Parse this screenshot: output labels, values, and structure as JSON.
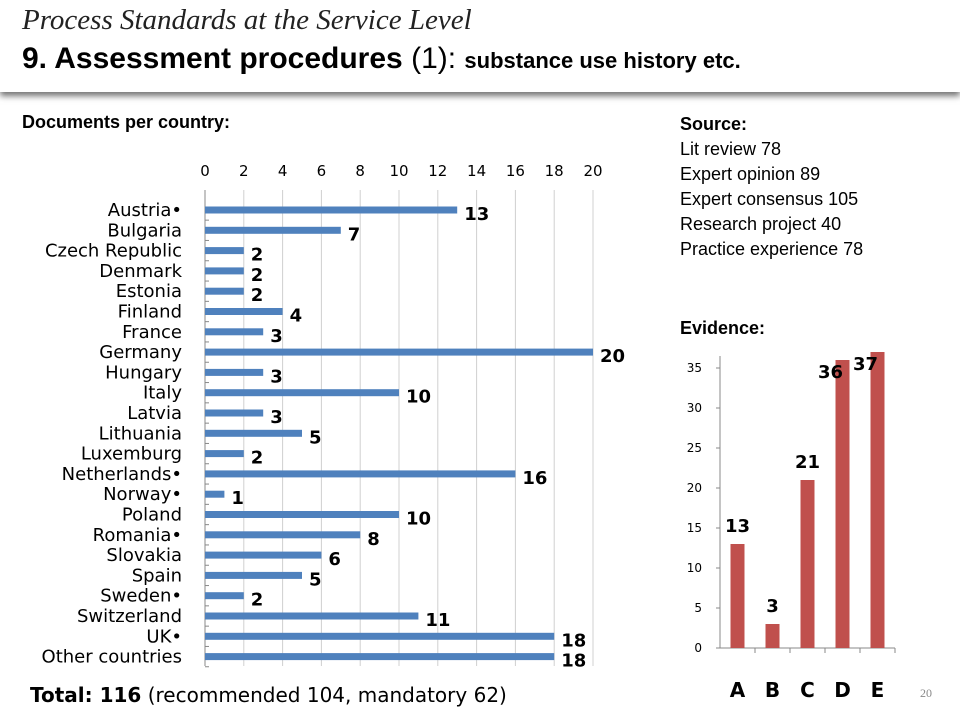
{
  "header": {
    "title": "Process Standards at the Service Level",
    "subtitle_main": "9. Assessment procedures",
    "subtitle_num": "(1):",
    "subtitle_small": "substance use history etc."
  },
  "docs_label": "Documents per country:",
  "source": {
    "heading": "Source:",
    "items": [
      "Lit review 78",
      "Expert opinion 89",
      "Expert consensus 105",
      "Research project 40",
      "Practice experience 78"
    ]
  },
  "evidence_label": "Evidence:",
  "total": {
    "bold": "Total: 116",
    "rest": "(recommended 104, mandatory 62)"
  },
  "page_number": "20",
  "colors": {
    "country_bar": "#4f81bd",
    "evidence_bar": "#c0504d"
  },
  "chart_data": [
    {
      "type": "bar",
      "orientation": "horizontal",
      "categories": [
        "Austria•",
        "Bulgaria",
        "Czech Republic",
        "Denmark",
        "Estonia",
        "Finland",
        "France",
        "Germany",
        "Hungary",
        "Italy",
        "Latvia",
        "Lithuania",
        "Luxemburg",
        "Netherlands•",
        "Norway•",
        "Poland",
        "Romania•",
        "Slovakia",
        "Spain",
        "Sweden•",
        "Switzerland",
        "UK•",
        "Other countries"
      ],
      "values": [
        13,
        7,
        2,
        2,
        2,
        4,
        3,
        20,
        3,
        10,
        3,
        5,
        2,
        16,
        1,
        10,
        8,
        6,
        5,
        2,
        11,
        18,
        18
      ],
      "xlim": [
        0,
        20
      ],
      "xticks": [
        "0",
        "2",
        "4",
        "6",
        "8",
        "10",
        "12",
        "14",
        "16",
        "18",
        "20"
      ],
      "grid": true,
      "axis_position": "top"
    },
    {
      "type": "bar",
      "orientation": "vertical",
      "categories": [
        "A",
        "B",
        "C",
        "D",
        "E"
      ],
      "values": [
        13,
        3,
        21,
        36,
        37
      ],
      "ylim": [
        0,
        35
      ],
      "yticks": [
        "0",
        "5",
        "10",
        "15",
        "20",
        "25",
        "30",
        "35"
      ],
      "grid": false
    }
  ]
}
